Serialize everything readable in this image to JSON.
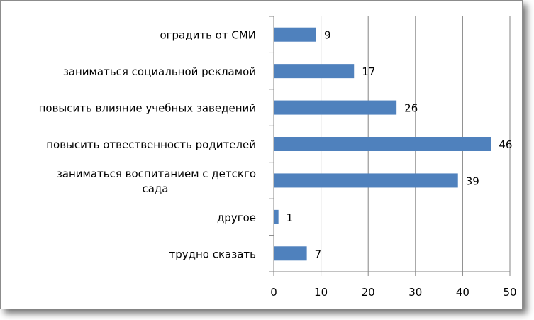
{
  "chart_data": {
    "type": "bar",
    "orientation": "horizontal",
    "categories": [
      [
        "оградить от СМИ"
      ],
      [
        "заниматься социальной рекламой"
      ],
      [
        "повысить влияние учебных заведений"
      ],
      [
        "повысить отвественность родителей"
      ],
      [
        "заниматься воспитанием с детскго",
        "сада"
      ],
      [
        "другое"
      ],
      [
        "трудно сказать"
      ]
    ],
    "values": [
      9,
      17,
      26,
      46,
      39,
      1,
      7
    ],
    "xlim": [
      0,
      50
    ],
    "xticks": [
      0,
      10,
      20,
      30,
      40,
      50
    ],
    "grid": "vertical",
    "bar_color": "#4f81bd",
    "grid_color": "#868686",
    "title": "",
    "xlabel": "",
    "ylabel": ""
  }
}
